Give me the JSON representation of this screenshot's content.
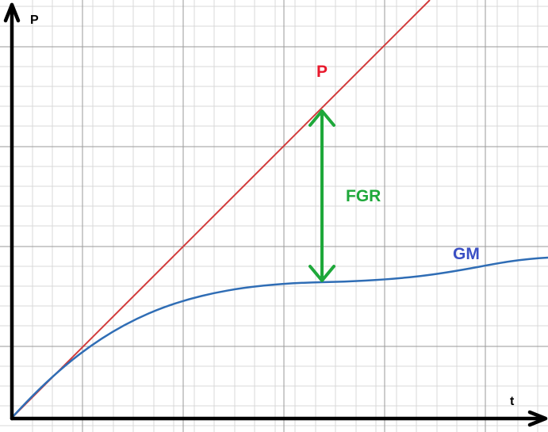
{
  "axes": {
    "y_label": "P",
    "x_label": "t"
  },
  "curves": {
    "p_label": "P",
    "gm_label": "GM",
    "gap_label": "FGR"
  },
  "colors": {
    "p_line": "#d23b3b",
    "gm_curve": "#2f6db5",
    "gm_label": "#3a4fc4",
    "gap_arrow": "#1ea83a",
    "p_label": "#e8192c",
    "axis": "#000000",
    "grid_major": "#9a9a9a",
    "grid_minor": "#d9d9d9"
  }
}
